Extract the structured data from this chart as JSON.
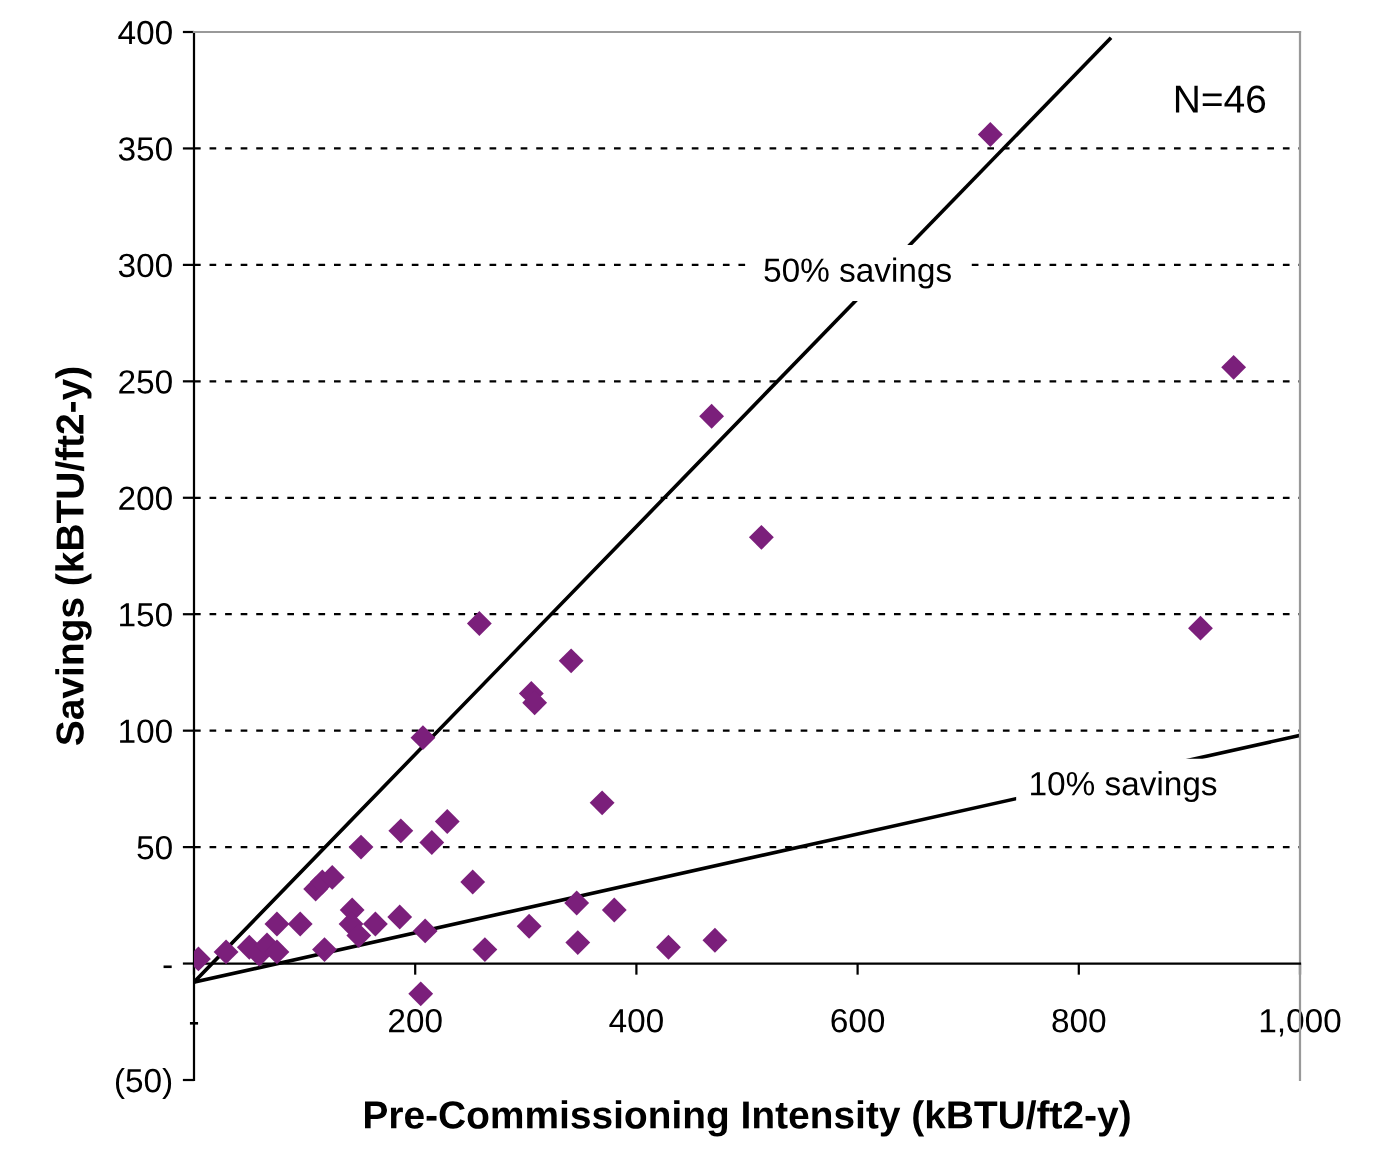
{
  "chart_data": {
    "type": "scatter",
    "xlabel": "Pre-Commissioning Intensity (kBTU/ft2-y)",
    "ylabel": "Savings (kBTU/ft2-y)",
    "xlim": [
      0,
      1000
    ],
    "ylim": [
      -50,
      400
    ],
    "xticks": [
      {
        "value": 0,
        "label": "-"
      },
      200,
      400,
      600,
      800,
      {
        "value": 1000,
        "label": "1,000"
      }
    ],
    "yticks": [
      {
        "value": -50,
        "label": "(50)"
      },
      {
        "value": 0,
        "label": "-"
      },
      50,
      100,
      150,
      200,
      250,
      300,
      350,
      400
    ],
    "grid": "y",
    "marker": "diamond",
    "series": [
      {
        "color": "#7b1f7b",
        "x": [
          4,
          29,
          50,
          59,
          66,
          75,
          75,
          96,
          110,
          116,
          125,
          118,
          143,
          142,
          149,
          151,
          164,
          186,
          187,
          207,
          209,
          215,
          229,
          205,
          252,
          263,
          305,
          308,
          303,
          346,
          347,
          369,
          380,
          468,
          513,
          258,
          341,
          429,
          471,
          720,
          940,
          910
        ],
        "values": [
          2,
          5,
          7,
          4,
          8,
          5,
          17,
          17,
          32,
          35,
          37,
          6,
          23,
          17,
          12,
          50,
          17,
          20,
          57,
          97,
          14,
          52,
          61,
          -13,
          35,
          6,
          116,
          112,
          16,
          26,
          9,
          69,
          23,
          235,
          183,
          146,
          130,
          7,
          10,
          356,
          256,
          144
        ]
      },
      {
        "type": "line",
        "color": "#000000",
        "x": [
          0,
          828
        ],
        "values": [
          -8,
          397
        ],
        "marker": "none",
        "line_style": "solid"
      },
      {
        "type": "line",
        "color": "#000000",
        "x": [
          0,
          1000
        ],
        "values": [
          -8,
          98
        ],
        "marker": "none",
        "line_style": "solid"
      }
    ],
    "annotations": [
      "50% savings",
      "10% savings",
      "N=46"
    ]
  }
}
